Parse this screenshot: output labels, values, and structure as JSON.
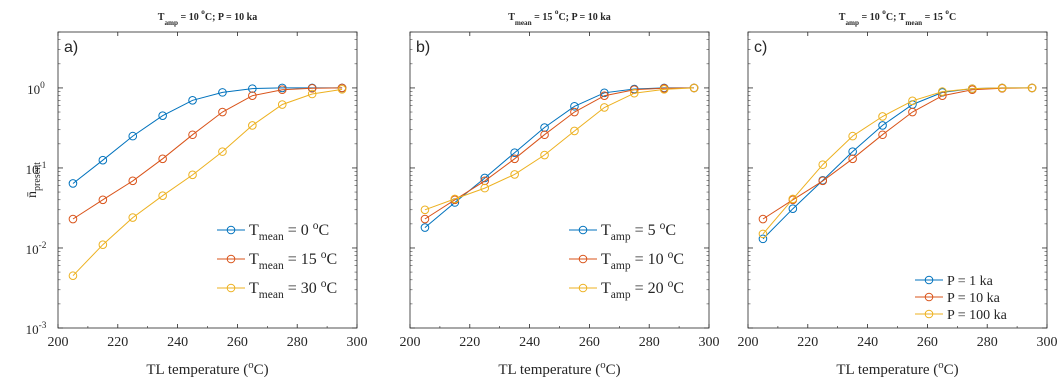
{
  "figure": {
    "ylabel_main": "n̄",
    "ylabel_sub": "present"
  },
  "chart_data": [
    {
      "type": "line",
      "panel_label": "a)",
      "title_parts": [
        {
          "t": "T"
        },
        {
          "t": "amp",
          "sub": true
        },
        {
          "t": " = 10 "
        },
        {
          "t": "o",
          "sup": true
        },
        {
          "t": "C;     P = 10 ka"
        }
      ],
      "xlabel": "TL temperature (oC)",
      "ylabel": "n̄present",
      "xlim": [
        200,
        300
      ],
      "ylim": [
        0.001,
        5
      ],
      "yscale": "log",
      "x_ticks": [
        "200",
        "220",
        "240",
        "260",
        "280",
        "300"
      ],
      "y_ticks": [
        {
          "base": "10",
          "exp": "-3"
        },
        {
          "base": "10",
          "exp": "-2"
        },
        {
          "base": "10",
          "exp": "-1"
        },
        {
          "base": "10",
          "exp": "0"
        }
      ],
      "legend_position": "lower-right",
      "x": [
        205,
        215,
        225,
        235,
        245,
        255,
        265,
        275,
        285,
        295
      ],
      "series": [
        {
          "name_parts": [
            {
              "t": "T"
            },
            {
              "t": "mean",
              "sub": true
            },
            {
              "t": " = 0 "
            },
            {
              "t": "o",
              "sup": true
            },
            {
              "t": "C"
            }
          ],
          "color": "#0072BD",
          "values": [
            0.064,
            0.125,
            0.25,
            0.45,
            0.7,
            0.88,
            0.98,
            1.0,
            1.0,
            1.0
          ]
        },
        {
          "name_parts": [
            {
              "t": "T"
            },
            {
              "t": "mean",
              "sub": true
            },
            {
              "t": " = 15 "
            },
            {
              "t": "o",
              "sup": true
            },
            {
              "t": "C"
            }
          ],
          "color": "#D95319",
          "values": [
            0.023,
            0.04,
            0.069,
            0.13,
            0.26,
            0.5,
            0.8,
            0.95,
            0.99,
            1.0
          ]
        },
        {
          "name_parts": [
            {
              "t": "T"
            },
            {
              "t": "mean",
              "sub": true
            },
            {
              "t": " = 30 "
            },
            {
              "t": "o",
              "sup": true
            },
            {
              "t": "C"
            }
          ],
          "color": "#EDB120",
          "values": [
            0.0045,
            0.011,
            0.024,
            0.045,
            0.082,
            0.16,
            0.34,
            0.62,
            0.84,
            0.96
          ]
        }
      ]
    },
    {
      "type": "line",
      "panel_label": "b)",
      "title_parts": [
        {
          "t": "T"
        },
        {
          "t": "mean",
          "sub": true
        },
        {
          "t": " = 15 "
        },
        {
          "t": "o",
          "sup": true
        },
        {
          "t": "C;     P = 10 ka"
        }
      ],
      "xlabel": "TL temperature (oC)",
      "xlim": [
        200,
        300
      ],
      "ylim": [
        0.001,
        5
      ],
      "yscale": "log",
      "x_ticks": [
        "200",
        "220",
        "240",
        "260",
        "280",
        "300"
      ],
      "legend_position": "lower-right",
      "x": [
        205,
        215,
        225,
        235,
        245,
        255,
        265,
        275,
        285,
        295
      ],
      "series": [
        {
          "name_parts": [
            {
              "t": "T"
            },
            {
              "t": "amp",
              "sub": true
            },
            {
              "t": " = 5 "
            },
            {
              "t": "o",
              "sup": true
            },
            {
              "t": "C"
            }
          ],
          "color": "#0072BD",
          "values": [
            0.018,
            0.037,
            0.075,
            0.155,
            0.32,
            0.59,
            0.87,
            0.97,
            1.0,
            1.0
          ]
        },
        {
          "name_parts": [
            {
              "t": "T"
            },
            {
              "t": "amp",
              "sub": true
            },
            {
              "t": " = 10 "
            },
            {
              "t": "o",
              "sup": true
            },
            {
              "t": "C"
            }
          ],
          "color": "#D95319",
          "values": [
            0.023,
            0.04,
            0.069,
            0.13,
            0.26,
            0.5,
            0.8,
            0.95,
            0.99,
            1.0
          ]
        },
        {
          "name_parts": [
            {
              "t": "T"
            },
            {
              "t": "amp",
              "sub": true
            },
            {
              "t": " = 20 "
            },
            {
              "t": "o",
              "sup": true
            },
            {
              "t": "C"
            }
          ],
          "color": "#EDB120",
          "values": [
            0.03,
            0.041,
            0.056,
            0.083,
            0.145,
            0.29,
            0.57,
            0.86,
            0.96,
            1.0
          ]
        }
      ]
    },
    {
      "type": "line",
      "panel_label": "c)",
      "title_parts": [
        {
          "t": "T"
        },
        {
          "t": "amp",
          "sub": true
        },
        {
          "t": " = 10 "
        },
        {
          "t": "o",
          "sup": true
        },
        {
          "t": "C;     T"
        },
        {
          "t": "mean",
          "sub": true
        },
        {
          "t": " = 15 "
        },
        {
          "t": "o",
          "sup": true
        },
        {
          "t": "C"
        }
      ],
      "xlabel": "TL temperature (oC)",
      "xlim": [
        200,
        300
      ],
      "ylim": [
        0.001,
        5
      ],
      "yscale": "log",
      "x_ticks": [
        "200",
        "220",
        "240",
        "260",
        "280",
        "300"
      ],
      "legend_position": "lower-right",
      "x": [
        205,
        215,
        225,
        235,
        245,
        255,
        265,
        275,
        285,
        295
      ],
      "series": [
        {
          "name_parts": [
            {
              "t": "P = 1 ka"
            }
          ],
          "color": "#0072BD",
          "values": [
            0.013,
            0.031,
            0.07,
            0.16,
            0.34,
            0.62,
            0.88,
            0.98,
            1.0,
            1.0
          ]
        },
        {
          "name_parts": [
            {
              "t": "P = 10 ka"
            }
          ],
          "color": "#D95319",
          "values": [
            0.023,
            0.04,
            0.069,
            0.13,
            0.26,
            0.5,
            0.8,
            0.95,
            0.99,
            1.0
          ]
        },
        {
          "name_parts": [
            {
              "t": "P = 100 ka"
            }
          ],
          "color": "#EDB120",
          "values": [
            0.015,
            0.041,
            0.11,
            0.25,
            0.44,
            0.69,
            0.9,
            0.98,
            1.0,
            1.0
          ]
        }
      ]
    }
  ]
}
